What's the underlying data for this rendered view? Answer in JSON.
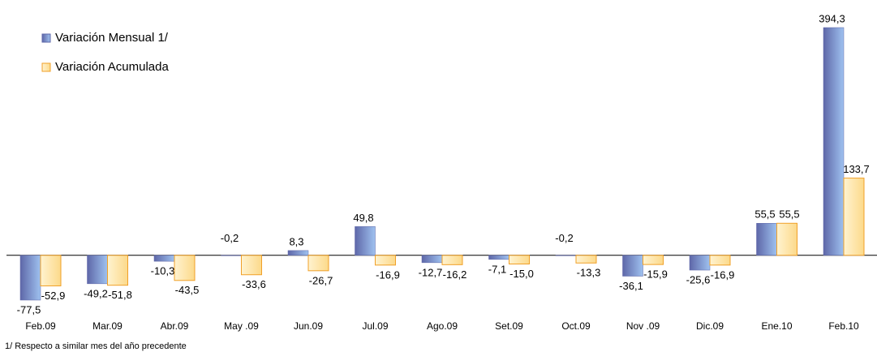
{
  "chart_data": {
    "type": "bar",
    "categories": [
      "Feb.09",
      "Mar.09",
      "Abr.09",
      "May .09",
      "Jun.09",
      "Jul.09",
      "Ago.09",
      "Set.09",
      "Oct.09",
      "Nov .09",
      "Dic.09",
      "Ene.10",
      "Feb.10"
    ],
    "series": [
      {
        "name": "Variación Mensual 1/",
        "color": "#6f7fc8",
        "values": [
          -77.5,
          -49.2,
          -10.3,
          -0.2,
          8.3,
          49.8,
          -12.7,
          -7.1,
          -0.2,
          -36.1,
          -25.6,
          55.5,
          394.3
        ],
        "value_labels": [
          "-77,5",
          "-49,2",
          "-10,3",
          "-0,2",
          "8,3",
          "49,8",
          "-12,7",
          "-7,1",
          "-0,2",
          "-36,1",
          "-25,6",
          "55,5",
          "394,3"
        ]
      },
      {
        "name": "Variación Acumulada",
        "color": "#fcd98a",
        "values": [
          -52.9,
          -51.8,
          -43.5,
          -33.6,
          -26.7,
          -16.9,
          -16.2,
          -15.0,
          -13.3,
          -15.9,
          -16.9,
          55.5,
          133.7
        ],
        "value_labels": [
          "-52,9",
          "-51,8",
          "-43,5",
          "-33,6",
          "-26,7",
          "-16,9",
          "-16,2",
          "-15,0",
          "-13,3",
          "-15,9",
          "-16,9",
          "55,5",
          "133,7"
        ]
      }
    ],
    "legend": "upper left",
    "note": "1/ Respecto a similar mes del año precedente"
  }
}
